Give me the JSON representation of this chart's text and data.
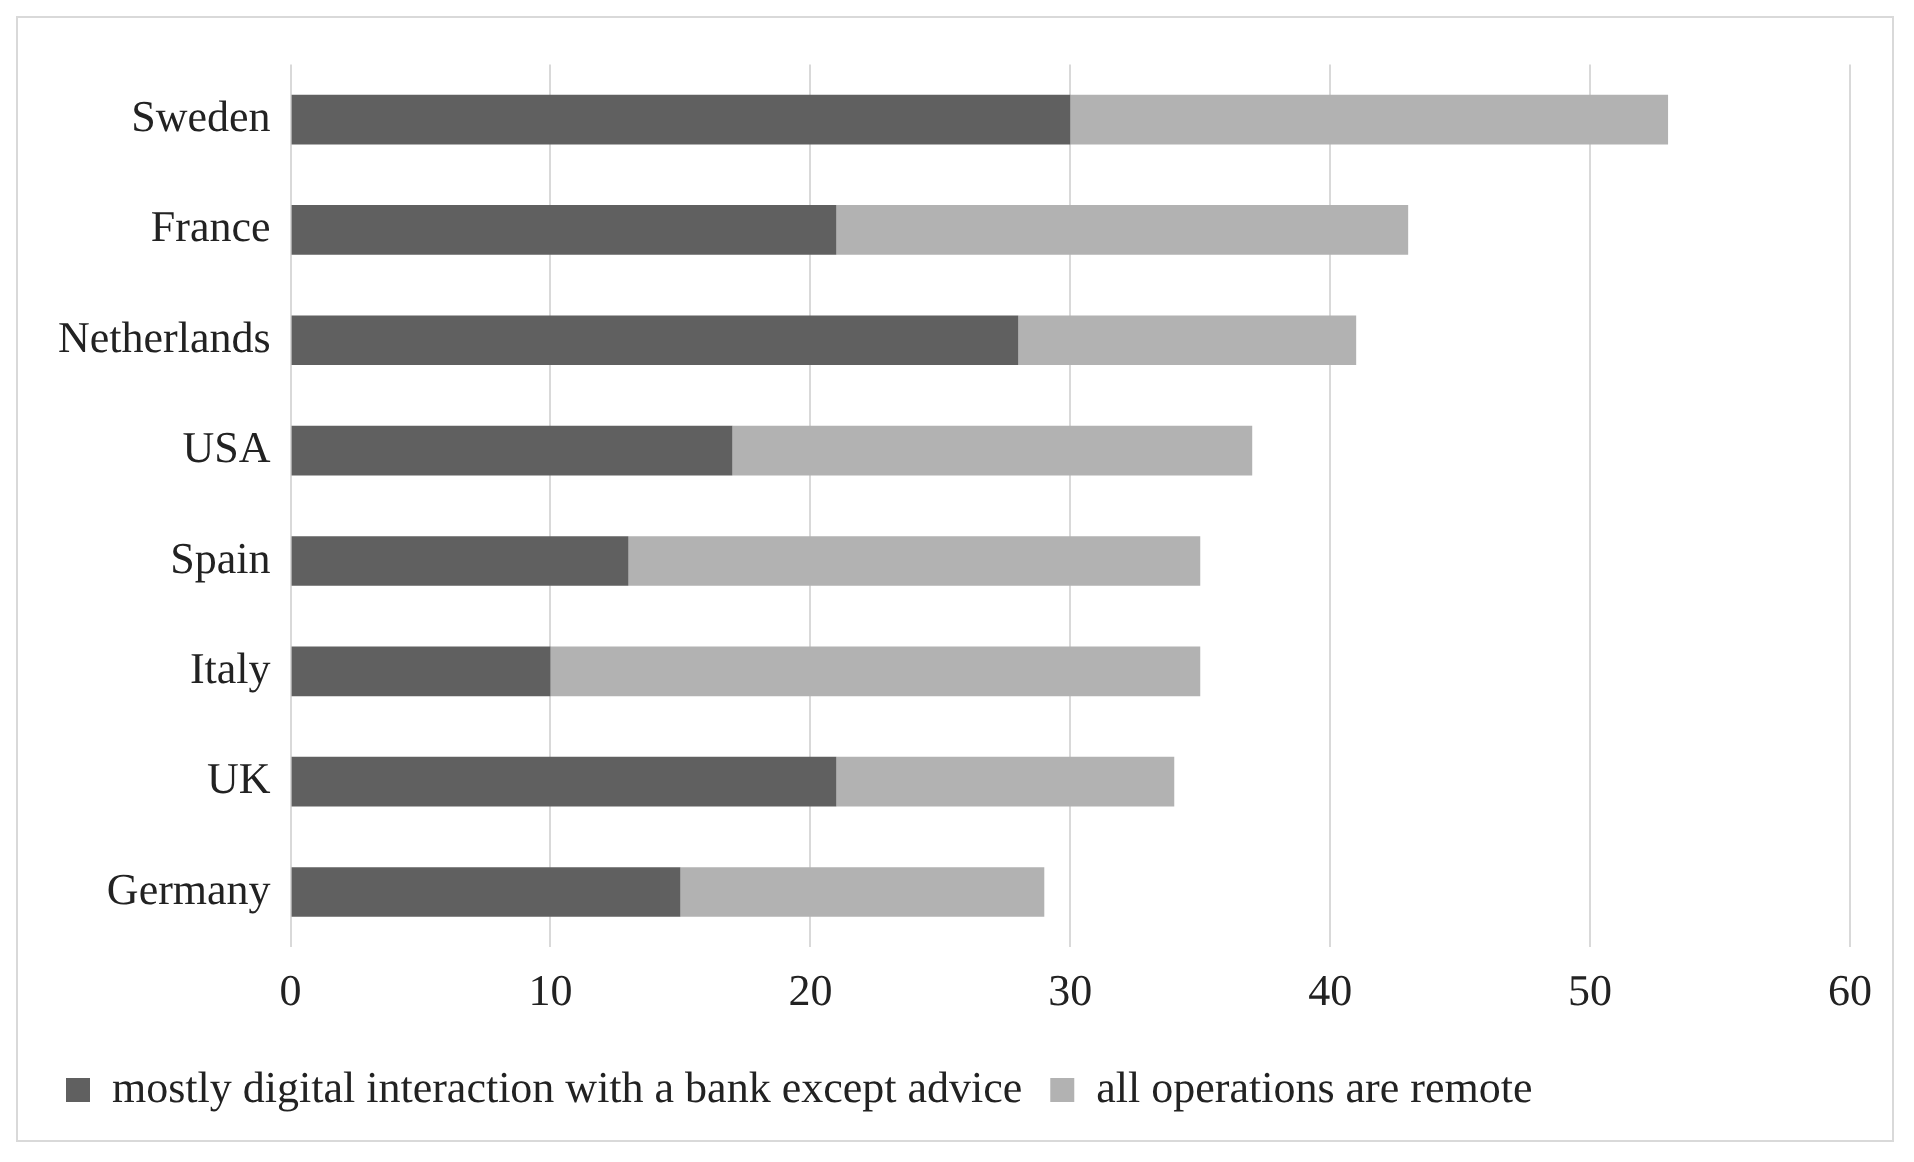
{
  "chart_data": {
    "type": "bar",
    "orientation": "horizontal",
    "stacked": true,
    "categories": [
      "Sweden",
      "France",
      "Netherlands",
      "USA",
      "Spain",
      "Italy",
      "UK",
      "Germany"
    ],
    "series": [
      {
        "name": "mostly digital interaction with a bank except advice",
        "color": "#606060",
        "values": [
          30,
          21,
          28,
          17,
          13,
          10,
          21,
          15
        ]
      },
      {
        "name": "all operations are remote",
        "color": "#b2b2b2",
        "values": [
          23,
          22,
          13,
          20,
          22,
          25,
          13,
          14
        ]
      }
    ],
    "xlim": [
      0,
      60
    ],
    "xticks": [
      0,
      10,
      20,
      30,
      40,
      50,
      60
    ],
    "grid": "x",
    "legend": "bottom"
  }
}
